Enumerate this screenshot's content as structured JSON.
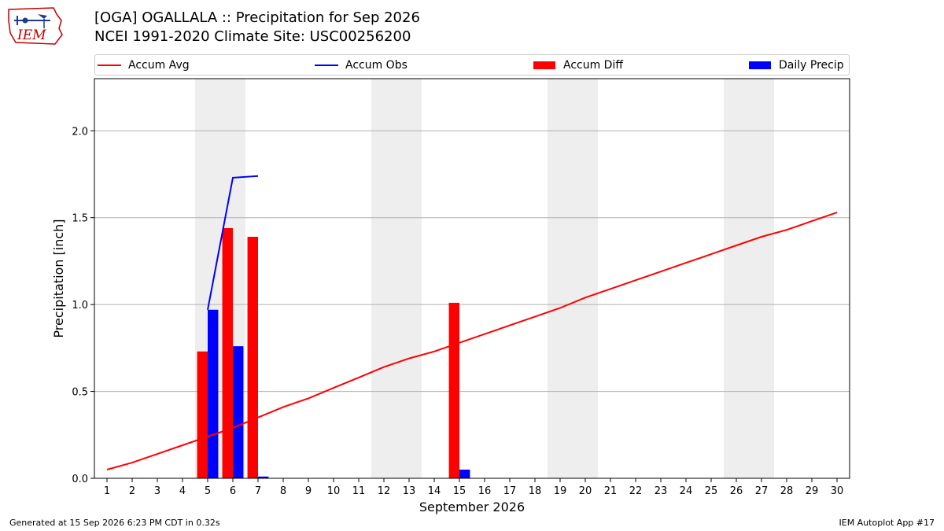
{
  "logo": {
    "text": "IEM",
    "icon": "iowa-state-weather-logo-icon",
    "colors": {
      "outline": "#c00000",
      "symbol": "#1f3a93"
    }
  },
  "header": {
    "title_line1": "[OGA] OGALLALA :: Precipitation for Sep 2026",
    "title_line2": "NCEI 1991-2020 Climate Site: USC00256200"
  },
  "legend": {
    "accum_avg": "Accum Avg",
    "accum_obs": "Accum Obs",
    "accum_diff": "Accum Diff",
    "daily_precip": "Daily Precip"
  },
  "footer": {
    "left": "Generated at 15 Sep 2026 6:23 PM CDT in 0.32s",
    "right": "IEM Autoplot App #17"
  },
  "colors": {
    "accum_avg": "#ff0000",
    "accum_obs": "#0000ff",
    "accum_diff": "#ff0000",
    "daily_precip": "#0000ff",
    "weekend_band": "#eeeeee",
    "grid": "#b0b0b0"
  },
  "chart_data": {
    "type": "bar",
    "xlabel": "September 2026",
    "ylabel": "Precipitation [inch]",
    "xlim": [
      0.5,
      30.5
    ],
    "ylim": [
      0,
      2.3
    ],
    "yticks": [
      0.0,
      0.5,
      1.0,
      1.5,
      2.0
    ],
    "ytick_labels": [
      "0.0",
      "0.5",
      "1.0",
      "1.5",
      "2.0"
    ],
    "grid": "horizontal",
    "legend_position": "top",
    "categories": [
      "1",
      "2",
      "3",
      "4",
      "5",
      "6",
      "7",
      "8",
      "9",
      "10",
      "11",
      "12",
      "13",
      "14",
      "15",
      "16",
      "17",
      "18",
      "19",
      "20",
      "21",
      "22",
      "23",
      "24",
      "25",
      "26",
      "27",
      "28",
      "29",
      "30"
    ],
    "shaded_days": [
      [
        5,
        6
      ],
      [
        12,
        13
      ],
      [
        19,
        20
      ],
      [
        26,
        27
      ]
    ],
    "series": [
      {
        "name": "Accum Avg",
        "type": "line",
        "x": [
          1,
          2,
          3,
          4,
          5,
          6,
          7,
          8,
          9,
          10,
          11,
          12,
          13,
          14,
          15,
          16,
          17,
          18,
          19,
          20,
          21,
          22,
          23,
          24,
          25,
          26,
          27,
          28,
          29,
          30
        ],
        "values": [
          0.05,
          0.09,
          0.14,
          0.19,
          0.24,
          0.29,
          0.35,
          0.41,
          0.46,
          0.52,
          0.58,
          0.64,
          0.69,
          0.73,
          0.78,
          0.83,
          0.88,
          0.93,
          0.98,
          1.04,
          1.09,
          1.14,
          1.19,
          1.24,
          1.29,
          1.34,
          1.39,
          1.43,
          1.48,
          1.53
        ]
      },
      {
        "name": "Accum Obs",
        "type": "line",
        "x": [
          5,
          6,
          7
        ],
        "values": [
          0.97,
          1.73,
          1.74
        ]
      },
      {
        "name": "Accum Diff",
        "type": "bar",
        "x": [
          5,
          6,
          7,
          15
        ],
        "values": [
          0.73,
          1.44,
          1.39,
          1.01
        ]
      },
      {
        "name": "Daily Precip",
        "type": "bar",
        "x": [
          5,
          6,
          7,
          15
        ],
        "values": [
          0.97,
          0.76,
          0.01,
          0.05
        ]
      }
    ]
  }
}
